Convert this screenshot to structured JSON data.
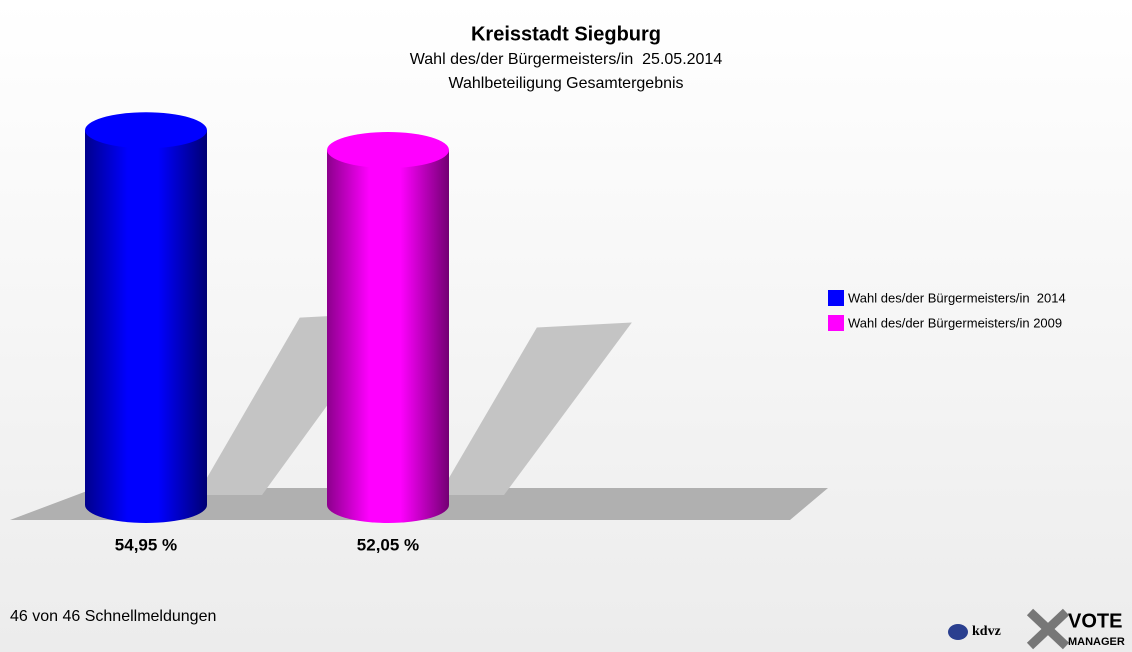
{
  "chart_data": {
    "type": "bar",
    "title": "Kreisstadt Siegburg",
    "subtitle": [
      "Wahl des/der Bürgermeisters/in  25.05.2014",
      "Wahlbeteiligung Gesamtergebnis"
    ],
    "series": [
      {
        "name": "Wahl des/der Bürgermeisters/in  2014",
        "color": "#0000ff",
        "values": [
          54.95
        ],
        "value_labels": [
          "54,95 %"
        ]
      },
      {
        "name": "Wahl des/der Bürgermeisters/in 2009",
        "color": "#ff00ff",
        "values": [
          52.05
        ],
        "value_labels": [
          "52,05 %"
        ]
      }
    ],
    "note": "46 von 46 Schnellmeldungen",
    "logo": [
      "kdvz",
      "VOTE",
      "MANAGER"
    ]
  }
}
